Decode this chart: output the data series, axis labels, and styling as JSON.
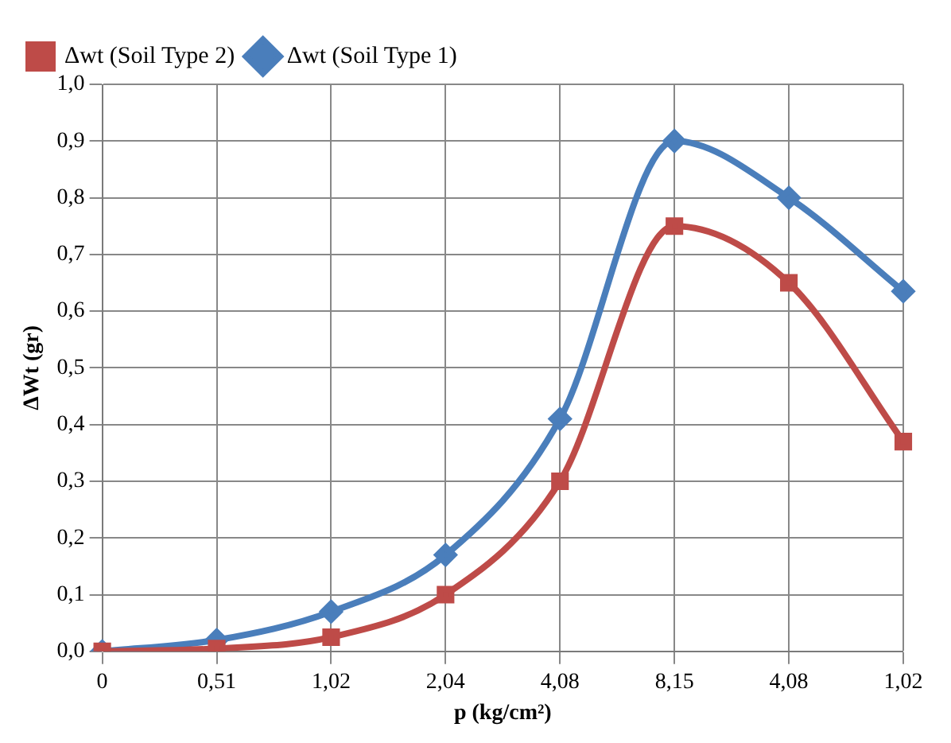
{
  "chart_data": {
    "type": "line",
    "xlabel": "p (kg/cm²)",
    "ylabel": "ΔWt (gr)",
    "categories": [
      "0",
      "0,51",
      "1,02",
      "2,04",
      "4,08",
      "8,15",
      "4,08",
      "1,02"
    ],
    "series": [
      {
        "name": "Δwt (Soil Type 1)",
        "color": "#4a7ebb",
        "marker": "diamond",
        "values": [
          0,
          0.02,
          0.07,
          0.17,
          0.41,
          0.9,
          0.8,
          0.635
        ]
      },
      {
        "name": "Δwt (Soil Type 2)",
        "color": "#be4b48",
        "marker": "square",
        "values": [
          0,
          0.005,
          0.025,
          0.1,
          0.3,
          0.75,
          0.65,
          0.37
        ]
      }
    ],
    "ylim": [
      0,
      1
    ],
    "yticks": [
      {
        "value": 0,
        "label": "0,0"
      },
      {
        "value": 0.1,
        "label": "0,1"
      },
      {
        "value": 0.2,
        "label": "0,2"
      },
      {
        "value": 0.3,
        "label": "0,3"
      },
      {
        "value": 0.4,
        "label": "0,4"
      },
      {
        "value": 0.5,
        "label": "0,5"
      },
      {
        "value": 0.6,
        "label": "0,6"
      },
      {
        "value": 0.7,
        "label": "0,7"
      },
      {
        "value": 0.8,
        "label": "0,8"
      },
      {
        "value": 0.9,
        "label": "0,9"
      },
      {
        "value": 1,
        "label": "1,0"
      }
    ],
    "grid": true,
    "legend": "top left",
    "line_style": "solid"
  }
}
